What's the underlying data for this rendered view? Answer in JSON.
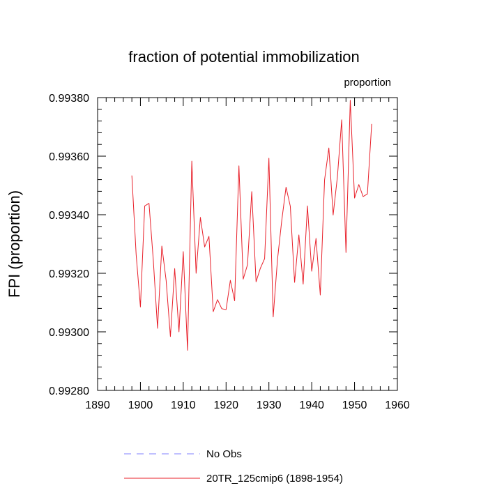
{
  "chart_data": {
    "type": "line",
    "title": "fraction of potential immobilization",
    "units_label": "proportion",
    "xlabel": "",
    "ylabel": "FPI  (proportion)",
    "xlim": [
      1890,
      1960
    ],
    "ylim": [
      0.9928,
      0.9938
    ],
    "xticks": [
      1890,
      1900,
      1910,
      1920,
      1930,
      1940,
      1950,
      1960
    ],
    "xtick_labels": [
      "1890",
      "1900",
      "1910",
      "1920",
      "1930",
      "1940",
      "1950",
      "1960"
    ],
    "yticks": [
      0.9928,
      0.993,
      0.9932,
      0.9934,
      0.9936,
      0.9938
    ],
    "ytick_labels": [
      "0.99280",
      "0.99300",
      "0.99320",
      "0.99340",
      "0.99360",
      "0.99380"
    ],
    "grid": false,
    "legend_position": "bottom",
    "series": [
      {
        "name": "20TR_125cmip6 (1898-1954)",
        "color": "#e8202a",
        "style": "solid",
        "x": [
          1898,
          1899,
          1900,
          1901,
          1902,
          1903,
          1904,
          1905,
          1906,
          1907,
          1908,
          1909,
          1910,
          1911,
          1912,
          1913,
          1914,
          1915,
          1916,
          1917,
          1918,
          1919,
          1920,
          1921,
          1922,
          1923,
          1924,
          1925,
          1926,
          1927,
          1928,
          1929,
          1930,
          1931,
          1932,
          1933,
          1934,
          1935,
          1936,
          1937,
          1938,
          1939,
          1940,
          1941,
          1942,
          1943,
          1944,
          1945,
          1946,
          1947,
          1948,
          1949,
          1950,
          1951,
          1952,
          1953,
          1954
        ],
        "values": [
          0.993534,
          0.993264,
          0.993085,
          0.99343,
          0.993439,
          0.993246,
          0.993012,
          0.993293,
          0.993176,
          0.992984,
          0.993216,
          0.993,
          0.993274,
          0.992937,
          0.993583,
          0.9932,
          0.993391,
          0.99329,
          0.993326,
          0.993069,
          0.99311,
          0.993079,
          0.993076,
          0.993176,
          0.993106,
          0.993567,
          0.99318,
          0.993229,
          0.993479,
          0.993171,
          0.993217,
          0.99325,
          0.993593,
          0.993051,
          0.993246,
          0.99338,
          0.993494,
          0.993429,
          0.993169,
          0.993331,
          0.993163,
          0.99343,
          0.993207,
          0.993319,
          0.993126,
          0.993519,
          0.993628,
          0.993399,
          0.99353,
          0.993724,
          0.993271,
          0.993791,
          0.993457,
          0.993503,
          0.993462,
          0.993471,
          0.99371
        ]
      }
    ],
    "legend": [
      {
        "label": "No Obs",
        "color": "#8080ff",
        "style": "dashed"
      },
      {
        "label": "20TR_125cmip6 (1898-1954)",
        "color": "#e8202a",
        "style": "solid"
      }
    ]
  }
}
